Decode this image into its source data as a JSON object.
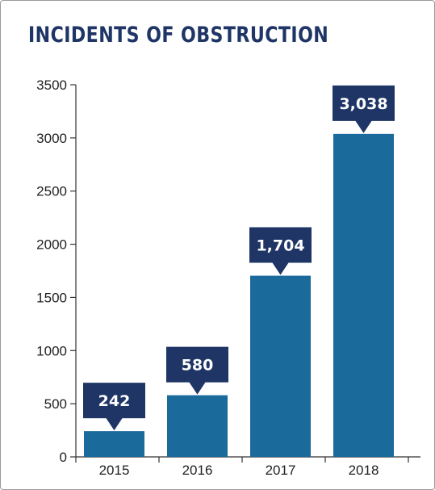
{
  "chart_data": {
    "type": "bar",
    "title": "INCIDENTS OF OBSTRUCTION",
    "categories": [
      "2015",
      "2016",
      "2017",
      "2018"
    ],
    "values": [
      242,
      580,
      1704,
      3038
    ],
    "data_labels": [
      "242",
      "580",
      "1,704",
      "3,038"
    ],
    "xlabel": "",
    "ylabel": "",
    "ylim": [
      0,
      3500
    ],
    "yticks": [
      0,
      500,
      1000,
      1500,
      2000,
      2500,
      3000,
      3500
    ],
    "grid": false,
    "colors": {
      "bar": "#1b6a9c",
      "callout": "#1e3566",
      "title": "#1e3566",
      "axis": "#333333"
    }
  }
}
